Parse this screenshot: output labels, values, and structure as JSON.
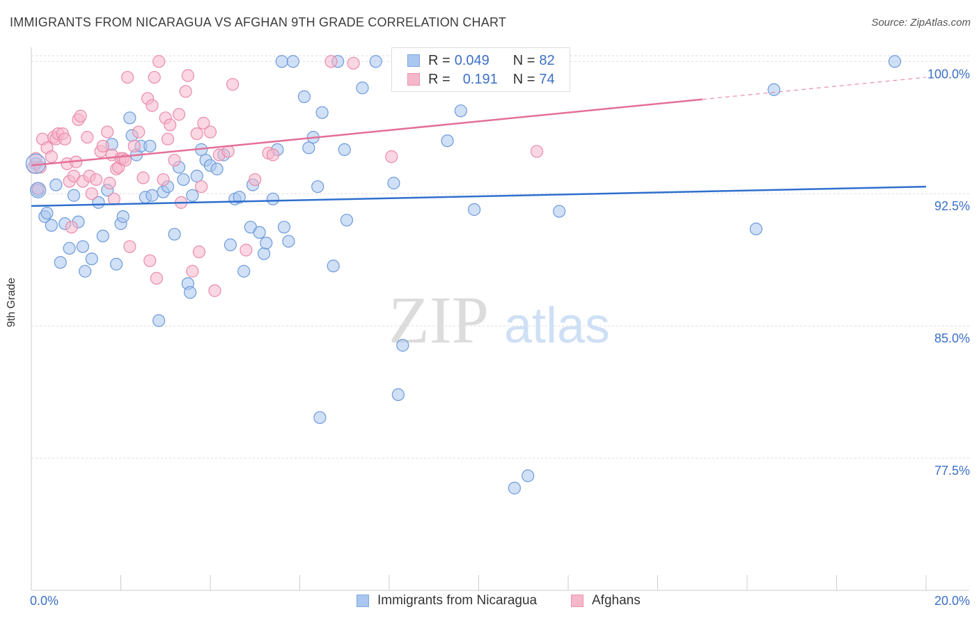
{
  "header": {
    "title": "IMMIGRANTS FROM NICARAGUA VS AFGHAN 9TH GRADE CORRELATION CHART",
    "source": "Source: ZipAtlas.com"
  },
  "watermark": {
    "zip": "ZIP",
    "atlas": "atlas"
  },
  "legend": {
    "rows": [
      {
        "r_label": "R = ",
        "r_value": "0.049",
        "n_label": "N = ",
        "n_value": "82",
        "color": "#a9c7ef",
        "border": "#7fa6df"
      },
      {
        "r_label": "R = ",
        "r_value": "0.191",
        "n_label": "N = ",
        "n_value": "74",
        "color": "#f5b7ca",
        "border": "#ec93b0"
      }
    ]
  },
  "chart_data": {
    "type": "scatter",
    "title": "IMMIGRANTS FROM NICARAGUA VS AFGHAN 9TH GRADE CORRELATION CHART",
    "xlabel": "",
    "ylabel": "9th Grade",
    "xlim": [
      0,
      20
    ],
    "ylim": [
      70,
      100.8
    ],
    "x_tick_labels": [
      "0.0%",
      "20.0%"
    ],
    "y_ticks": [
      77.5,
      85.0,
      92.5,
      100.0
    ],
    "y_tick_labels": [
      "77.5%",
      "85.0%",
      "92.5%",
      "100.0%"
    ],
    "grid": "horizontal dashed",
    "series": [
      {
        "name": "Immigrants from Nicaragua",
        "color": "#a9c7ef",
        "stroke": "#6d9ad9",
        "line_color": "#2f6fce",
        "trend": {
          "x": [
            0,
            20
          ],
          "y": [
            91.8,
            92.9
          ],
          "dashed_from": null
        },
        "points": [
          [
            0.1,
            94.2
          ],
          [
            0.15,
            92.7
          ],
          [
            0.3,
            91.2
          ],
          [
            0.35,
            91.4
          ],
          [
            0.45,
            90.7
          ],
          [
            0.55,
            93.0
          ],
          [
            0.65,
            88.6
          ],
          [
            0.75,
            90.8
          ],
          [
            0.85,
            89.4
          ],
          [
            0.95,
            92.4
          ],
          [
            1.05,
            90.9
          ],
          [
            1.15,
            89.5
          ],
          [
            1.2,
            88.1
          ],
          [
            1.35,
            88.8
          ],
          [
            1.5,
            92.0
          ],
          [
            1.6,
            90.1
          ],
          [
            1.7,
            92.7
          ],
          [
            1.8,
            95.3
          ],
          [
            1.9,
            88.5
          ],
          [
            2.0,
            90.8
          ],
          [
            2.05,
            91.2
          ],
          [
            2.2,
            96.8
          ],
          [
            2.25,
            95.8
          ],
          [
            2.35,
            94.7
          ],
          [
            2.45,
            95.2
          ],
          [
            2.55,
            92.3
          ],
          [
            2.65,
            95.2
          ],
          [
            2.7,
            92.4
          ],
          [
            2.85,
            85.3
          ],
          [
            2.95,
            92.6
          ],
          [
            3.05,
            92.9
          ],
          [
            3.2,
            90.2
          ],
          [
            3.3,
            94.0
          ],
          [
            3.4,
            93.3
          ],
          [
            3.5,
            87.4
          ],
          [
            3.55,
            86.9
          ],
          [
            3.6,
            92.4
          ],
          [
            3.7,
            93.5
          ],
          [
            3.8,
            95.0
          ],
          [
            3.9,
            94.4
          ],
          [
            4.0,
            94.1
          ],
          [
            4.15,
            93.9
          ],
          [
            4.3,
            94.7
          ],
          [
            4.45,
            89.6
          ],
          [
            4.55,
            92.2
          ],
          [
            4.65,
            92.3
          ],
          [
            4.75,
            88.1
          ],
          [
            4.9,
            90.6
          ],
          [
            4.95,
            93.0
          ],
          [
            5.1,
            90.3
          ],
          [
            5.2,
            89.1
          ],
          [
            5.25,
            89.7
          ],
          [
            5.4,
            92.2
          ],
          [
            5.5,
            95.0
          ],
          [
            5.6,
            100.0
          ],
          [
            5.65,
            90.6
          ],
          [
            5.75,
            89.8
          ],
          [
            5.85,
            100.0
          ],
          [
            6.1,
            98.0
          ],
          [
            6.2,
            95.1
          ],
          [
            6.3,
            95.7
          ],
          [
            6.4,
            92.9
          ],
          [
            6.45,
            79.8
          ],
          [
            6.5,
            97.1
          ],
          [
            6.75,
            88.4
          ],
          [
            6.85,
            100.0
          ],
          [
            7.0,
            95.0
          ],
          [
            7.05,
            91.0
          ],
          [
            7.4,
            98.5
          ],
          [
            7.7,
            100.0
          ],
          [
            8.1,
            93.1
          ],
          [
            8.2,
            81.1
          ],
          [
            8.3,
            83.9
          ],
          [
            9.3,
            95.5
          ],
          [
            9.6,
            97.2
          ],
          [
            9.9,
            91.6
          ],
          [
            10.8,
            75.8
          ],
          [
            11.1,
            76.5
          ],
          [
            11.8,
            91.5
          ],
          [
            16.2,
            90.5
          ],
          [
            16.6,
            98.4
          ],
          [
            19.3,
            100.0
          ]
        ]
      },
      {
        "name": "Afghans",
        "color": "#f5b7ca",
        "stroke": "#ea8aaa",
        "line_color": "#e46f97",
        "trend": {
          "x": [
            0,
            20
          ],
          "y": [
            94.1,
            99.1
          ],
          "dashed_from": 15.0
        },
        "points": [
          [
            0.05,
            94.0
          ],
          [
            0.1,
            94.5
          ],
          [
            0.15,
            92.8
          ],
          [
            0.2,
            94.0
          ],
          [
            0.25,
            95.6
          ],
          [
            0.35,
            95.1
          ],
          [
            0.45,
            94.6
          ],
          [
            0.5,
            95.7
          ],
          [
            0.55,
            95.6
          ],
          [
            0.6,
            95.9
          ],
          [
            0.7,
            95.9
          ],
          [
            0.75,
            95.6
          ],
          [
            0.8,
            94.2
          ],
          [
            0.85,
            93.2
          ],
          [
            0.9,
            90.6
          ],
          [
            0.95,
            93.5
          ],
          [
            1.0,
            94.3
          ],
          [
            1.05,
            96.7
          ],
          [
            1.1,
            96.9
          ],
          [
            1.15,
            93.2
          ],
          [
            1.25,
            95.7
          ],
          [
            1.3,
            93.5
          ],
          [
            1.35,
            92.5
          ],
          [
            1.45,
            93.3
          ],
          [
            1.55,
            94.9
          ],
          [
            1.6,
            95.2
          ],
          [
            1.7,
            96.0
          ],
          [
            1.75,
            93.1
          ],
          [
            1.8,
            94.7
          ],
          [
            1.85,
            92.2
          ],
          [
            1.9,
            93.9
          ],
          [
            1.95,
            94.0
          ],
          [
            2.0,
            94.5
          ],
          [
            2.05,
            94.5
          ],
          [
            2.1,
            94.4
          ],
          [
            2.15,
            99.1
          ],
          [
            2.2,
            89.5
          ],
          [
            2.3,
            95.2
          ],
          [
            2.4,
            96.0
          ],
          [
            2.5,
            93.4
          ],
          [
            2.6,
            97.9
          ],
          [
            2.65,
            88.7
          ],
          [
            2.7,
            97.5
          ],
          [
            2.75,
            99.1
          ],
          [
            2.8,
            87.7
          ],
          [
            2.85,
            100.0
          ],
          [
            2.95,
            93.3
          ],
          [
            3.0,
            96.8
          ],
          [
            3.05,
            95.6
          ],
          [
            3.1,
            96.4
          ],
          [
            3.2,
            94.4
          ],
          [
            3.3,
            97.0
          ],
          [
            3.35,
            92.0
          ],
          [
            3.45,
            98.3
          ],
          [
            3.5,
            99.2
          ],
          [
            3.6,
            88.1
          ],
          [
            3.7,
            95.9
          ],
          [
            3.75,
            89.2
          ],
          [
            3.8,
            92.9
          ],
          [
            3.85,
            96.5
          ],
          [
            4.0,
            96.0
          ],
          [
            4.1,
            87.0
          ],
          [
            4.2,
            94.7
          ],
          [
            4.4,
            94.9
          ],
          [
            4.5,
            98.7
          ],
          [
            4.8,
            89.3
          ],
          [
            5.0,
            93.3
          ],
          [
            5.3,
            94.8
          ],
          [
            5.4,
            94.7
          ],
          [
            6.7,
            100.0
          ],
          [
            7.2,
            99.9
          ],
          [
            8.05,
            94.6
          ],
          [
            10.5,
            100.0
          ],
          [
            11.3,
            94.9
          ]
        ]
      }
    ]
  }
}
